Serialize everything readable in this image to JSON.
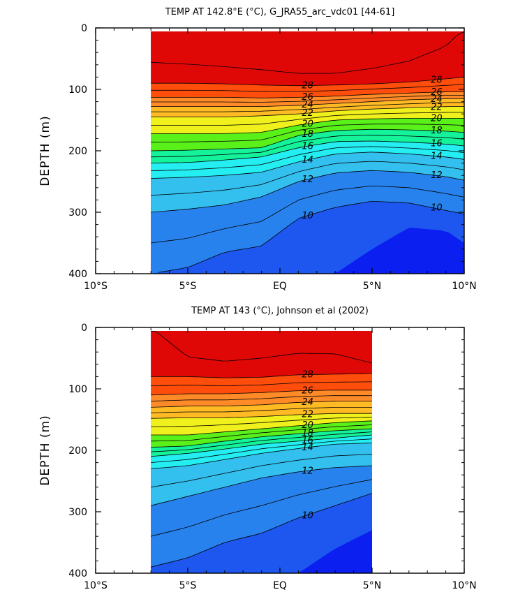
{
  "chart_data": [
    {
      "type": "contour",
      "title": "TEMP AT 142.8°E (°C), G_JRA55_arc_vdc01 [44-61]",
      "xlabel": "",
      "ylabel": "DEPTH (m)",
      "x_ticklabels": [
        "10°S",
        "5°S",
        "EQ",
        "5°N",
        "10°N"
      ],
      "x_tickvalues": [
        -10,
        -5,
        0,
        5,
        10
      ],
      "y_ticklabels": [
        "0",
        "100",
        "200",
        "300",
        "400"
      ],
      "y_tickvalues": [
        0,
        100,
        200,
        300,
        400
      ],
      "xlim": [
        -10,
        10
      ],
      "ylim": [
        400,
        0
      ],
      "data_extent_lat": [
        -7,
        10
      ],
      "contour_interval": 1,
      "contour_labels": [
        "28",
        "26",
        "24",
        "22",
        "20",
        "18",
        "16",
        "14",
        "12",
        "10"
      ],
      "isotherm_depths": {
        "lat": [
          -7,
          -5,
          -3,
          -1,
          1,
          3,
          5,
          7,
          9,
          10
        ],
        "levels": [
          {
            "t": 29,
            "d": [
              56,
              59,
              63,
              68,
              74,
              74,
              66,
              54,
              30,
              0
            ]
          },
          {
            "t": 28,
            "d": [
              90,
              90,
              91,
              93,
              94,
              93,
              91,
              88,
              83,
              80
            ]
          },
          {
            "t": 26,
            "d": [
              113,
              113,
              113,
              114,
              113,
              111,
              108,
              106,
              104,
              104
            ]
          },
          {
            "t": 24,
            "d": [
              128,
              128,
              128,
              128,
              126,
              123,
              120,
              117,
              115,
              115
            ]
          },
          {
            "t": 22,
            "d": [
              145,
              145,
              145,
              143,
              140,
              135,
              132,
              130,
              128,
              128
            ]
          },
          {
            "t": 20,
            "d": [
              172,
              172,
              172,
              170,
              158,
              150,
              148,
              147,
              147,
              147
            ]
          },
          {
            "t": 18,
            "d": [
              200,
              199,
              197,
              195,
              175,
              167,
              165,
              166,
              168,
              170
            ]
          },
          {
            "t": 16,
            "d": [
              220,
              219,
              215,
              210,
              195,
              185,
              184,
              186,
              189,
              192
            ]
          },
          {
            "t": 14,
            "d": [
              245,
              243,
              240,
              235,
              218,
              205,
              202,
              205,
              210,
              214
            ]
          },
          {
            "t": 12,
            "d": [
              300,
              295,
              288,
              275,
              250,
              236,
              232,
              235,
              242,
              248
            ]
          },
          {
            "t": 10,
            "d": [
              400,
              390,
              365,
              355,
              310,
              292,
              282,
              285,
              297,
              303
            ]
          },
          {
            "t": 9,
            "d": [
              null,
              null,
              null,
              null,
              null,
              400,
              360,
              325,
              330,
              350
            ]
          }
        ]
      }
    },
    {
      "type": "contour",
      "title": "TEMP AT 143 (°C), Johnson et al (2002)",
      "xlabel": "",
      "ylabel": "DEPTH (m)",
      "x_ticklabels": [
        "10°S",
        "5°S",
        "EQ",
        "5°N",
        "10°N"
      ],
      "x_tickvalues": [
        -10,
        -5,
        0,
        5,
        10
      ],
      "y_ticklabels": [
        "0",
        "100",
        "200",
        "300",
        "400"
      ],
      "y_tickvalues": [
        0,
        100,
        200,
        300,
        400
      ],
      "xlim": [
        -10,
        10
      ],
      "ylim": [
        400,
        0
      ],
      "data_extent_lat": [
        -7,
        5
      ],
      "contour_interval": 1,
      "contour_labels": [
        "28",
        "26",
        "24",
        "22",
        "20",
        "18",
        "16",
        "14",
        "12",
        "10"
      ],
      "isotherm_depths": {
        "lat": [
          -7,
          -5,
          -3,
          -1,
          1,
          3,
          5
        ],
        "levels": [
          {
            "t": 29,
            "d": [
              0,
              48,
              55,
              50,
              42,
              43,
              58
            ]
          },
          {
            "t": 28,
            "d": [
              80,
              80,
              82,
              81,
              77,
              76,
              75
            ]
          },
          {
            "t": 26,
            "d": [
              110,
              108,
              108,
              106,
              103,
              102,
              102
            ]
          },
          {
            "t": 24,
            "d": [
              130,
              128,
              128,
              126,
              122,
              120,
              120
            ]
          },
          {
            "t": 22,
            "d": [
              148,
              147,
              147,
              145,
              142,
              140,
              140
            ]
          },
          {
            "t": 20,
            "d": [
              175,
              175,
              170,
              165,
              160,
              155,
              152
            ]
          },
          {
            "t": 18,
            "d": [
              195,
              193,
              185,
              178,
              173,
              168,
              165
            ]
          },
          {
            "t": 16,
            "d": [
              210,
              205,
              198,
              190,
              185,
              180,
              175
            ]
          },
          {
            "t": 14,
            "d": [
              230,
              225,
              215,
              205,
              197,
              190,
              188
            ]
          },
          {
            "t": 12,
            "d": [
              290,
              275,
              260,
              245,
              235,
              228,
              225
            ]
          },
          {
            "t": 10,
            "d": [
              390,
              375,
              350,
              335,
              310,
              290,
              270
            ]
          },
          {
            "t": 9,
            "d": [
              null,
              null,
              null,
              null,
              400,
              360,
              330
            ]
          }
        ]
      }
    }
  ],
  "colors": {
    "levels": [
      "#0a1ff0",
      "#1d57f0",
      "#2782ee",
      "#2fa4ee",
      "#34c0ef",
      "#30d8f2",
      "#24eef2",
      "#19f3cf",
      "#14f29a",
      "#14ee55",
      "#5af01a",
      "#b8f01a",
      "#f0f01c",
      "#ffd51e",
      "#ffba24",
      "#ffa22c",
      "#ff8a28",
      "#ff7018",
      "#ff4d0c",
      "#f02006",
      "#e00806"
    ]
  }
}
